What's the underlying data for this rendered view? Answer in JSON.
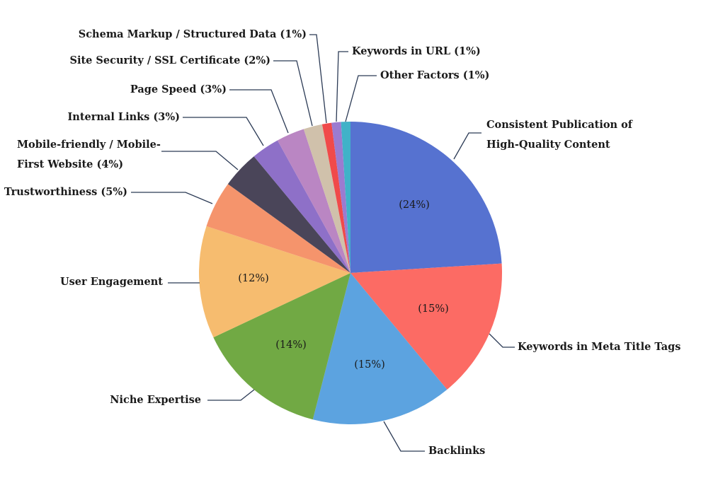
{
  "chart_data": {
    "type": "pie",
    "categories": [
      "Consistent Publication of High-Quality Content",
      "Keywords in Meta Title Tags",
      "Backlinks",
      "Niche Expertise",
      "User Engagement",
      "Trustworthiness",
      "Mobile-friendly / Mobile-First Website",
      "Internal Links",
      "Page Speed",
      "Site Security / SSL Certificate",
      "Schema Markup / Structured Data",
      "Keywords in URL",
      "Other Factors"
    ],
    "values": [
      24,
      15,
      15,
      14,
      12,
      5,
      4,
      3,
      3,
      2,
      1,
      1,
      1
    ],
    "value_labels": [
      "(24%)",
      "(15%)",
      "(15%)",
      "(14%)",
      "(12%)",
      "(5%)",
      "(4%)",
      "(3%)",
      "(3%)",
      "(2%)",
      "(1%)",
      "(1%)",
      "(1%)"
    ],
    "colors": [
      "#5672d0",
      "#fc6b64",
      "#5ca3e0",
      "#71a944",
      "#f6bc6f",
      "#f5946c",
      "#4a4559",
      "#8e70c8",
      "#ba86c3",
      "#d0c1ab",
      "#f04a4a",
      "#9b7bd0",
      "#40b2c8"
    ]
  }
}
